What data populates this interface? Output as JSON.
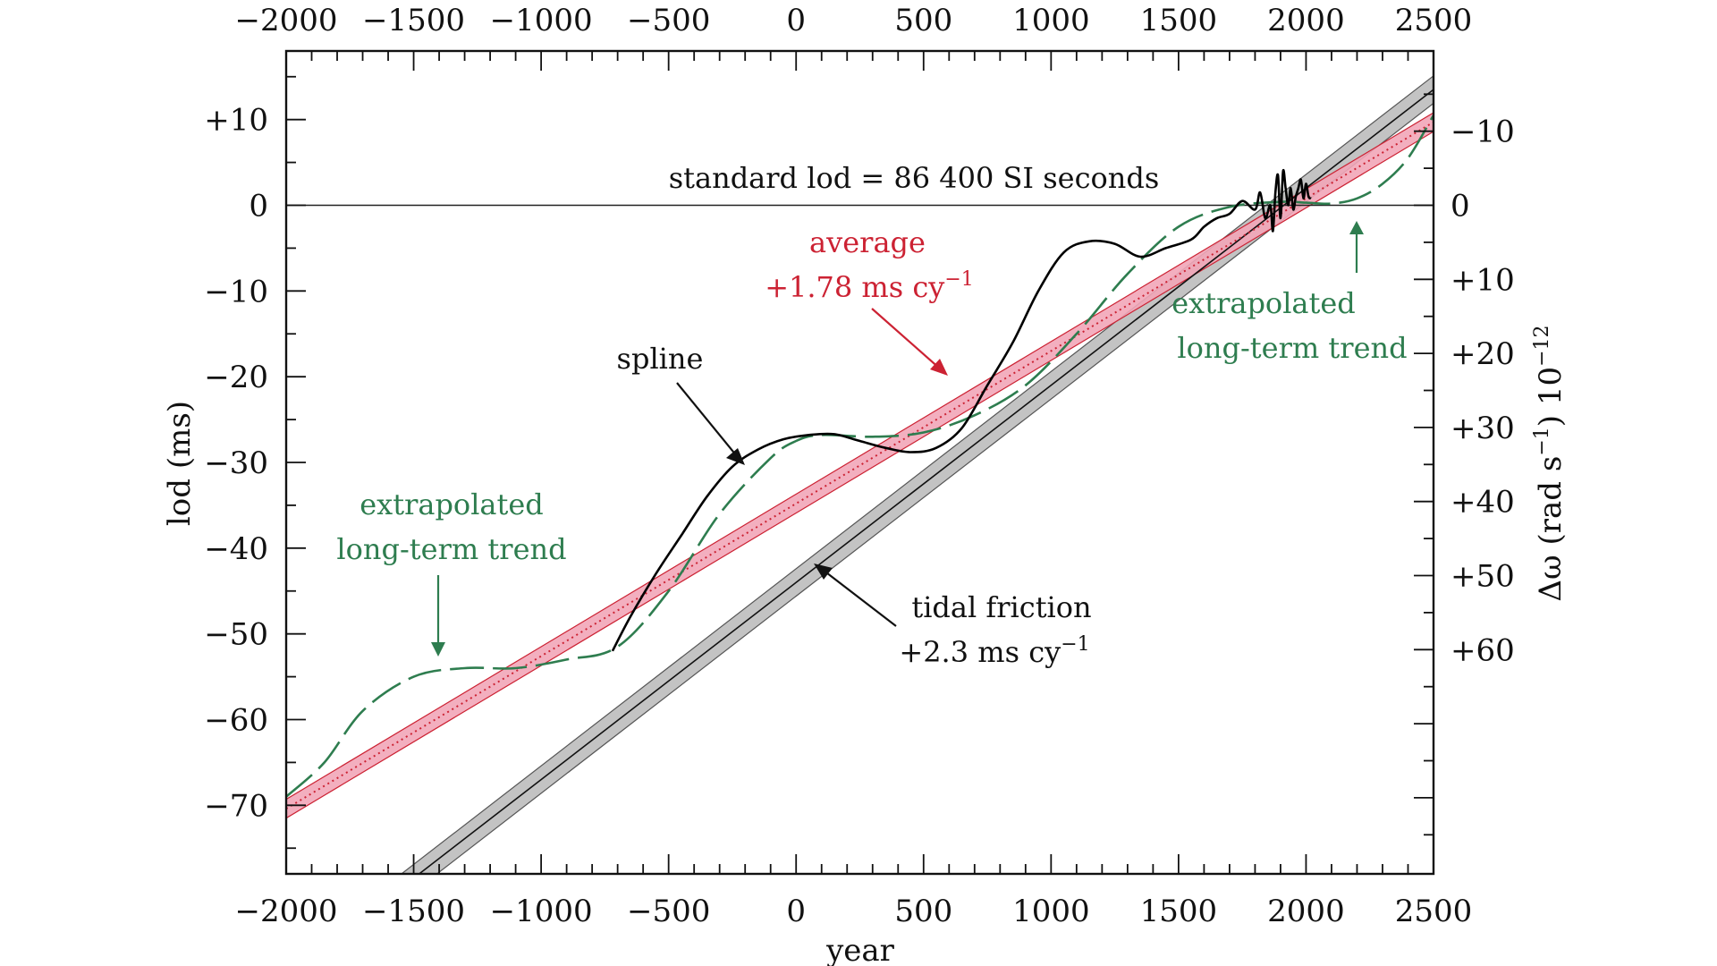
{
  "chart_data": {
    "type": "line",
    "xlabel": "year",
    "ylabel": "lod (ms)",
    "y2label": {
      "main": "Δω (rad s",
      "sup1": "−1",
      "close": ")  10",
      "sup2": "−12"
    },
    "xlim": [
      -2000,
      2500
    ],
    "ylim": [
      -78,
      18
    ],
    "x_ticks": [
      -2000,
      -1500,
      -1000,
      -500,
      0,
      500,
      1000,
      1500,
      2000,
      2500
    ],
    "x_tick_labels": [
      "−2000",
      "−1500",
      "−1000",
      "−500",
      "0",
      "500",
      "1000",
      "1500",
      "2000",
      "2500"
    ],
    "y_ticks": [
      10,
      0,
      -10,
      -20,
      -30,
      -40,
      -50,
      -60,
      -70
    ],
    "y_tick_labels": [
      "+10",
      "0",
      "−10",
      "−20",
      "−30",
      "−40",
      "−50",
      "−60",
      "−70"
    ],
    "y2_ticks": [
      -10,
      0,
      10,
      20,
      30,
      40,
      50,
      60
    ],
    "y2_tick_labels": [
      "−10",
      "0",
      "+10",
      "+20",
      "+30",
      "+40",
      "+50",
      "+60"
    ],
    "y2_ms_per_unit": 0.864,
    "colors": {
      "axes": "#111111",
      "red": "#cc2233",
      "pink_band": "#f2a6b8",
      "green": "#2e7d4f",
      "gray_band": "#b9b9b9",
      "spline": "#000000"
    },
    "series": [
      {
        "name": "tidal friction",
        "kind": "line_with_band",
        "slope_ms_per_cy": 2.3,
        "ref_year": 2000,
        "ref_value": 2,
        "band_halfwidth_ms": 1.6
      },
      {
        "name": "average",
        "kind": "line_with_band",
        "slope_ms_per_cy": 1.78,
        "ref_year": 2000,
        "ref_value": 0.8,
        "band_halfwidth_ms": 1.1
      },
      {
        "name": "extrapolated long-term trend",
        "kind": "dashed",
        "x": [
          -2000,
          -1850,
          -1700,
          -1500,
          -1300,
          -1100,
          -900,
          -700,
          -500,
          -300,
          -100,
          0,
          100,
          300,
          500,
          700,
          900,
          1100,
          1300,
          1500,
          1700,
          1900,
          2000,
          2100,
          2200,
          2300,
          2400,
          2500
        ],
        "y": [
          -69,
          -65,
          -59,
          -55,
          -54,
          -54,
          -53,
          -51.5,
          -45,
          -36,
          -29.5,
          -27.5,
          -26.8,
          -27,
          -26.5,
          -24.5,
          -21,
          -15,
          -8,
          -2.5,
          -0.2,
          0.4,
          0.3,
          0.2,
          0.8,
          2.5,
          5.5,
          10.5
        ]
      },
      {
        "name": "spline",
        "kind": "solid",
        "x": [
          -720,
          -650,
          -550,
          -450,
          -350,
          -250,
          -150,
          -50,
          50,
          150,
          250,
          350,
          450,
          550,
          650,
          750,
          850,
          950,
          1050,
          1150,
          1250,
          1350,
          1450,
          1550,
          1600,
          1650,
          1700,
          1750,
          1800,
          1820,
          1840,
          1860,
          1870,
          1880,
          1890,
          1900,
          1910,
          1920,
          1930,
          1940,
          1950,
          1960,
          1970,
          1980,
          1990,
          2000,
          2010,
          2020
        ],
        "y": [
          -52,
          -48,
          -43,
          -38.5,
          -34,
          -30.5,
          -28.5,
          -27.3,
          -26.8,
          -26.7,
          -27.5,
          -28.3,
          -28.8,
          -28.3,
          -26,
          -21,
          -16,
          -10,
          -5.5,
          -4.2,
          -4.5,
          -6,
          -5,
          -4,
          -2.5,
          -1.5,
          -1,
          0.5,
          -0.5,
          1.5,
          -1.5,
          0,
          -3,
          1.5,
          3.5,
          -1.5,
          4,
          2,
          0,
          2,
          -0.5,
          1,
          2,
          3,
          0.8,
          2.5,
          1,
          0.8
        ]
      }
    ],
    "reference_line": {
      "value": 0,
      "label": "standard lod = 86 400 SI seconds"
    },
    "annotations": {
      "average_line1": "average",
      "average_line2": "+1.78 ms cy",
      "average_sup": "−1",
      "spline": "spline",
      "tidal_line1": "tidal friction",
      "tidal_line2": "+2.3 ms cy",
      "tidal_sup": "−1",
      "trend_left_line1": "extrapolated",
      "trend_left_line2": "long-term trend",
      "trend_right_line1": "extrapolated",
      "trend_right_line2": "long-term trend"
    }
  }
}
